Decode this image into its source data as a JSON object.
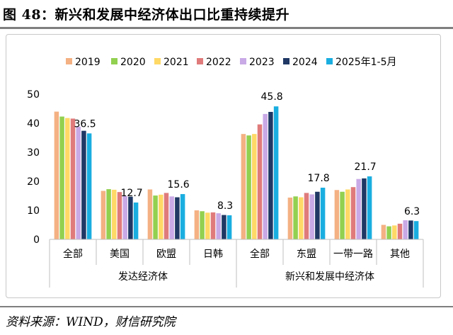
{
  "header": {
    "title": "图 48：新兴和发展中经济体出口比重持续提升"
  },
  "footer": {
    "source": "资料来源：WIND，财信研究院"
  },
  "chart_data": {
    "type": "bar",
    "title": "",
    "xlabel": "",
    "ylabel": "",
    "ylim": [
      0,
      50
    ],
    "yticks": [
      0,
      10,
      20,
      30,
      40,
      50
    ],
    "grid": false,
    "legend_position": "top",
    "categories": [
      "全部",
      "美国",
      "欧盟",
      "日韩",
      "全部",
      "东盟",
      "一带一路",
      "其他"
    ],
    "groups": [
      {
        "label": "发达经济体",
        "categories": [
          "全部",
          "美国",
          "欧盟",
          "日韩"
        ]
      },
      {
        "label": "新兴和发展中经济体",
        "categories": [
          "全部",
          "东盟",
          "一带一路",
          "其他"
        ]
      }
    ],
    "series": [
      {
        "name": "2019",
        "color": "#F4B183",
        "values": [
          44.0,
          16.7,
          17.2,
          10.0,
          36.3,
          14.4,
          17.0,
          5.0
        ]
      },
      {
        "name": "2020",
        "color": "#92D050",
        "values": [
          42.3,
          17.3,
          15.1,
          9.7,
          35.8,
          14.8,
          16.4,
          4.5
        ]
      },
      {
        "name": "2021",
        "color": "#FFD966",
        "values": [
          41.8,
          17.1,
          15.4,
          9.2,
          36.3,
          14.5,
          17.2,
          4.8
        ]
      },
      {
        "name": "2022",
        "color": "#E07B7B",
        "values": [
          41.6,
          16.3,
          16.0,
          9.3,
          39.6,
          16.0,
          18.0,
          5.4
        ]
      },
      {
        "name": "2023",
        "color": "#C9A9E6",
        "values": [
          38.8,
          14.9,
          14.8,
          9.0,
          43.2,
          15.5,
          20.8,
          6.6
        ]
      },
      {
        "name": "2024",
        "color": "#1F3864",
        "values": [
          37.4,
          14.7,
          14.5,
          8.4,
          43.9,
          16.4,
          21.0,
          6.5
        ]
      },
      {
        "name": "2025年1-5月",
        "color": "#1AAEE0",
        "values": [
          36.5,
          12.7,
          15.6,
          8.3,
          45.8,
          17.8,
          21.7,
          6.3
        ]
      }
    ],
    "data_labels": [
      {
        "category_index": 0,
        "series_index": 6,
        "text": "36.5"
      },
      {
        "category_index": 1,
        "series_index": 6,
        "text": "12.7"
      },
      {
        "category_index": 2,
        "series_index": 6,
        "text": "15.6"
      },
      {
        "category_index": 3,
        "series_index": 6,
        "text": "8.3"
      },
      {
        "category_index": 4,
        "series_index": 6,
        "text": "45.8"
      },
      {
        "category_index": 5,
        "series_index": 6,
        "text": "17.8"
      },
      {
        "category_index": 6,
        "series_index": 6,
        "text": "21.7"
      },
      {
        "category_index": 7,
        "series_index": 6,
        "text": "6.3"
      }
    ]
  }
}
